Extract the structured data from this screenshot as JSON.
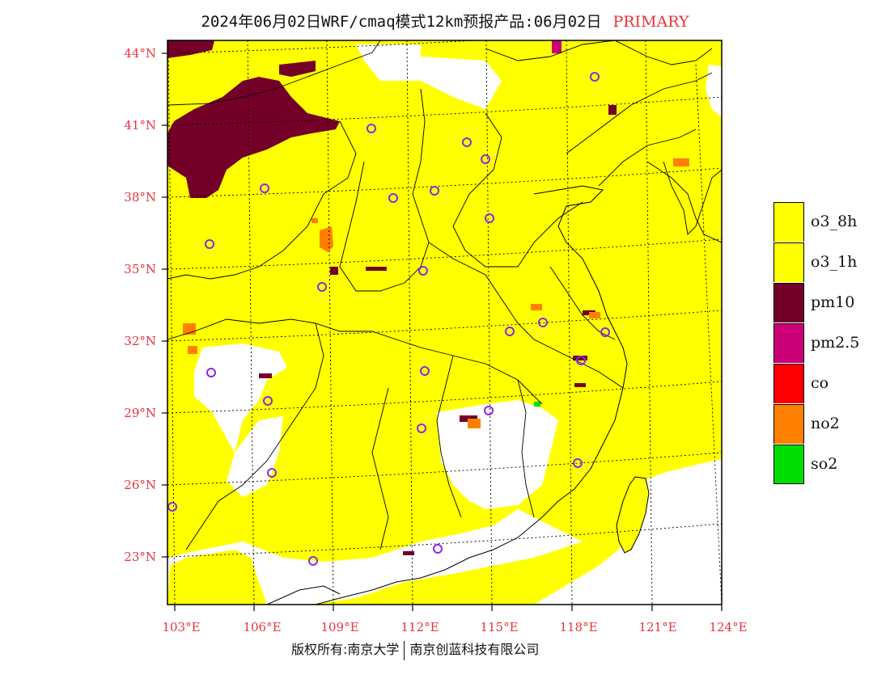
{
  "title": {
    "text": "2024年06月02日WRF/cmaq模式12km预报产品:06月02日",
    "tag": "PRIMARY"
  },
  "map": {
    "lat_labels": [
      "44°N",
      "41°N",
      "38°N",
      "35°N",
      "32°N",
      "29°N",
      "26°N",
      "23°N"
    ],
    "lon_labels": [
      "103°E",
      "106°E",
      "109°E",
      "112°E",
      "115°E",
      "118°E",
      "121°E",
      "124°E"
    ],
    "dominant_pollutant_field": "o3_8h",
    "colors": {
      "o3": "#ffff00",
      "pm10": "#740029",
      "pm25": "#cc0077",
      "no2": "#ff7f00",
      "so2": "#00dd00",
      "boundary": "#000000",
      "city_marker": "#8a2be2"
    }
  },
  "legend": {
    "items": [
      {
        "label": "o3_8h",
        "color": "#ffff00"
      },
      {
        "label": "o3_1h",
        "color": "#ffff00"
      },
      {
        "label": "pm10",
        "color": "#740029"
      },
      {
        "label": "pm2.5",
        "color": "#cc0077"
      },
      {
        "label": "co",
        "color": "#ff0000"
      },
      {
        "label": "no2",
        "color": "#ff7f00"
      },
      {
        "label": "so2",
        "color": "#00dd00"
      }
    ]
  },
  "footer": {
    "left": "版权所有:南京大学",
    "right": "南京创蓝科技有限公司"
  }
}
